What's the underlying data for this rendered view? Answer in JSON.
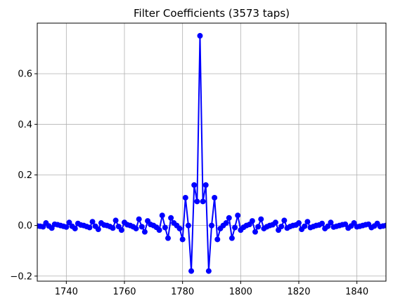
{
  "chart_data": {
    "type": "line",
    "title": "Filter Coefficients (3573 taps)",
    "xlabel": "",
    "ylabel": "",
    "xlim": [
      1730,
      1850
    ],
    "ylim": [
      -0.22,
      0.8
    ],
    "xticks": [
      1740,
      1760,
      1780,
      1800,
      1820,
      1840
    ],
    "yticks": [
      -0.2,
      0.0,
      0.2,
      0.4,
      0.6
    ],
    "ytick_labels": [
      "−0.2",
      "0.0",
      "0.2",
      "0.4",
      "0.6"
    ],
    "grid": true,
    "line_color": "#0000ff",
    "series": [
      {
        "x": [
          1730,
          1731,
          1732,
          1733,
          1734,
          1735,
          1736,
          1737,
          1738,
          1739,
          1740,
          1741,
          1742,
          1743,
          1744,
          1745,
          1746,
          1747,
          1748,
          1749,
          1750,
          1751,
          1752,
          1753,
          1754,
          1755,
          1756,
          1757,
          1758,
          1759,
          1760,
          1761,
          1762,
          1763,
          1764,
          1765,
          1766,
          1767,
          1768,
          1769,
          1770,
          1771,
          1772,
          1773,
          1774,
          1775,
          1776,
          1777,
          1778,
          1779,
          1780,
          1781,
          1782,
          1783,
          1784,
          1785,
          1786,
          1787,
          1788,
          1789,
          1790,
          1791,
          1792,
          1793,
          1794,
          1795,
          1796,
          1797,
          1798,
          1799,
          1800,
          1801,
          1802,
          1803,
          1804,
          1805,
          1806,
          1807,
          1808,
          1809,
          1810,
          1811,
          1812,
          1813,
          1814,
          1815,
          1816,
          1817,
          1818,
          1819,
          1820,
          1821,
          1822,
          1823,
          1824,
          1825,
          1826,
          1827,
          1828,
          1829,
          1830,
          1831,
          1832,
          1833,
          1834,
          1835,
          1836,
          1837,
          1838,
          1839,
          1840,
          1841,
          1842,
          1843,
          1844,
          1845,
          1846,
          1847,
          1848,
          1849,
          1850
        ],
        "y": [
          -0.002,
          -0.003,
          -0.005,
          0.01,
          -0.002,
          -0.01,
          0.005,
          0.003,
          0.0,
          -0.003,
          -0.006,
          0.012,
          -0.003,
          -0.012,
          0.008,
          0.002,
          0.0,
          -0.004,
          -0.008,
          0.015,
          -0.003,
          -0.015,
          0.01,
          0.002,
          0.0,
          -0.004,
          -0.01,
          0.02,
          -0.004,
          -0.018,
          0.012,
          0.003,
          0.0,
          -0.005,
          -0.012,
          0.025,
          -0.005,
          -0.025,
          0.018,
          0.004,
          0.0,
          -0.007,
          -0.018,
          0.04,
          -0.008,
          -0.05,
          0.03,
          0.01,
          0.0,
          -0.012,
          -0.055,
          0.11,
          0.0,
          -0.18,
          0.16,
          0.095,
          0.75,
          0.095,
          0.16,
          -0.18,
          0.0,
          0.11,
          -0.055,
          -0.012,
          0.0,
          0.01,
          0.03,
          -0.05,
          -0.008,
          0.04,
          -0.018,
          -0.007,
          0.0,
          0.004,
          0.018,
          -0.025,
          -0.005,
          0.025,
          -0.012,
          -0.005,
          0.0,
          0.003,
          0.012,
          -0.018,
          -0.004,
          0.02,
          -0.01,
          -0.004,
          0.0,
          0.002,
          0.01,
          -0.015,
          -0.003,
          0.015,
          -0.008,
          -0.004,
          0.0,
          0.002,
          0.008,
          -0.012,
          -0.003,
          0.012,
          -0.006,
          -0.003,
          0.0,
          0.003,
          0.005,
          -0.01,
          -0.002,
          0.01,
          -0.005,
          -0.003,
          0.0,
          0.003,
          0.005,
          -0.008,
          -0.002,
          0.008,
          -0.004,
          -0.002,
          0.0
        ]
      }
    ]
  }
}
